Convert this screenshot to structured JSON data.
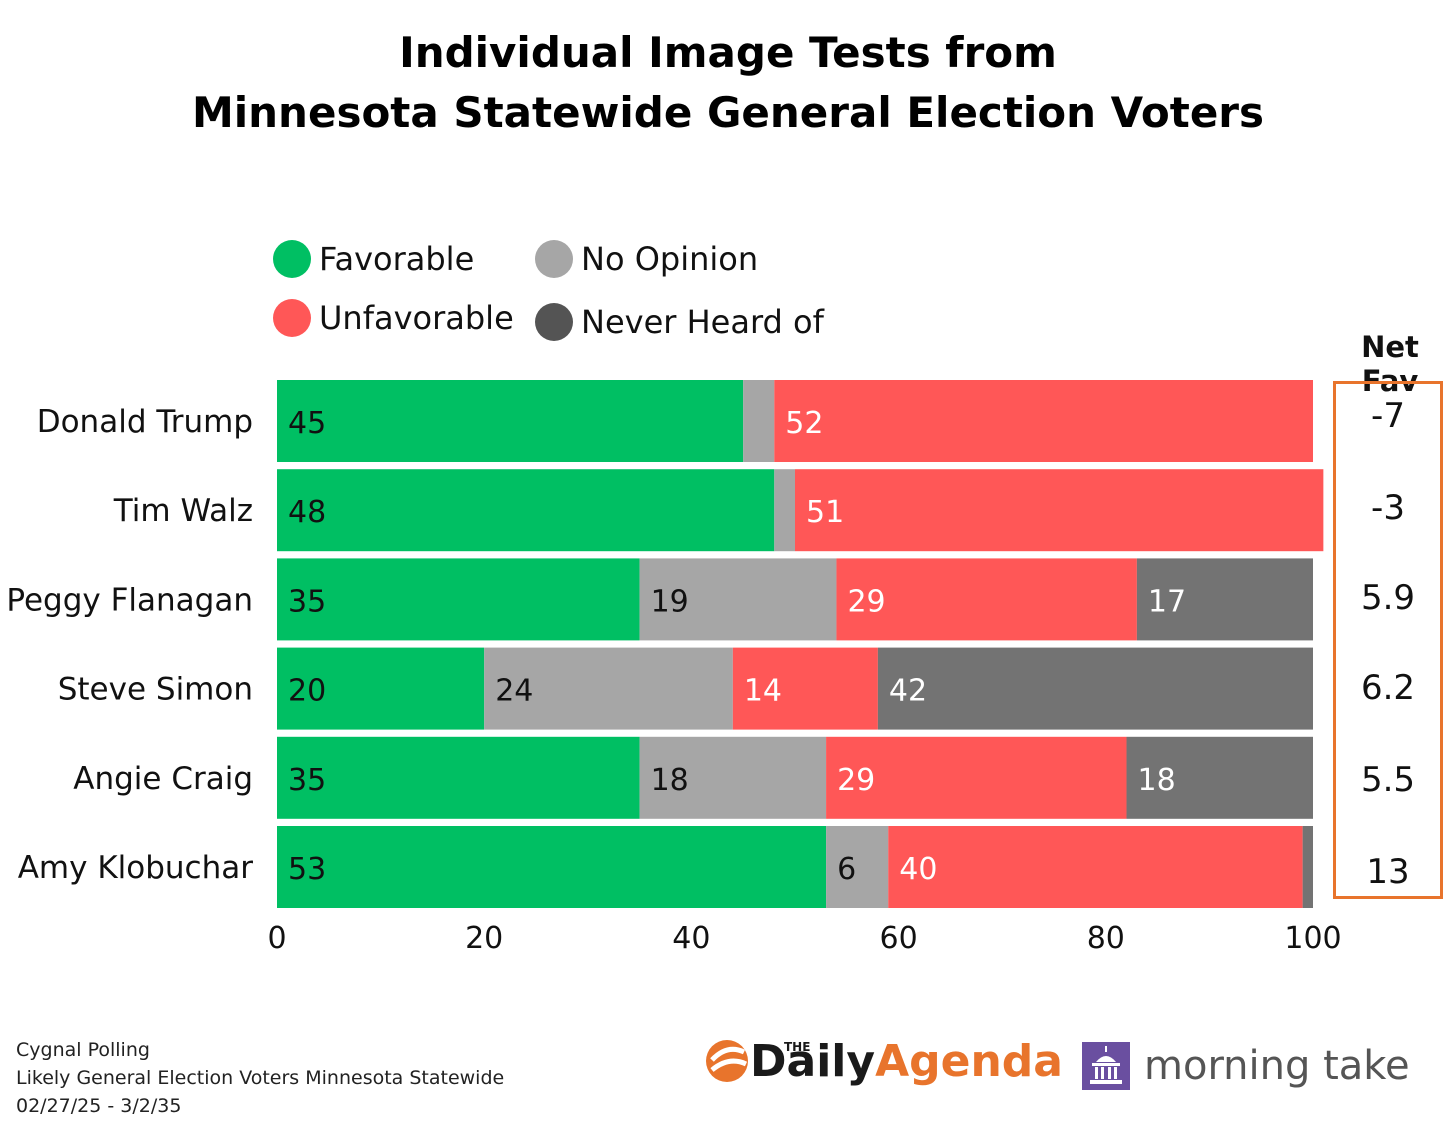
{
  "title_line1": "Individual Image Tests from",
  "title_line2": "Minnesota Statewide General Election Voters",
  "legend": [
    {
      "label": "Favorable",
      "color": "#00bf63"
    },
    {
      "label": "No Opinion",
      "color": "#a6a6a6"
    },
    {
      "label": "Unfavorable",
      "color": "#ff5757"
    },
    {
      "label": "Never Heard of",
      "color": "#545454"
    }
  ],
  "net_fav_header": "Net Fav",
  "net_fav_values": [
    "-7",
    "-3",
    "5.9",
    "6.2",
    "5.5",
    "13"
  ],
  "footer": {
    "line1": "Cygnal Polling",
    "line2": "Likely General Election Voters Minnesota Statewide",
    "line3": "02/27/25 - 3/2/35"
  },
  "logos": {
    "daily_agenda_the": "THE",
    "daily_agenda_daily": "Daily",
    "daily_agenda_agenda": "Agenda",
    "daily_agenda_color": "#e8742c",
    "morning_take": "morning take",
    "morning_take_color": "#6a4fa0"
  },
  "chart_data": {
    "type": "bar",
    "orientation": "horizontal",
    "stacked": true,
    "categories": [
      "Donald Trump",
      "Tim Walz",
      "Peggy Flanagan",
      "Steve Simon",
      "Angie Craig",
      "Amy Klobuchar"
    ],
    "series": [
      {
        "name": "Favorable",
        "color": "#00bf63",
        "label_color": "#111111",
        "values": [
          45,
          48,
          35,
          20,
          35,
          53
        ],
        "labels": [
          "45",
          "48",
          "35",
          "20",
          "35",
          "53"
        ]
      },
      {
        "name": "No Opinion",
        "color": "#a6a6a6",
        "label_color": "#111111",
        "values": [
          3,
          2,
          19,
          24,
          18,
          6
        ],
        "labels": [
          "",
          "",
          "19",
          "24",
          "18",
          "6"
        ]
      },
      {
        "name": "Unfavorable",
        "color": "#ff5757",
        "label_color": "#ffffff",
        "values": [
          52,
          51,
          29,
          14,
          29,
          40
        ],
        "labels": [
          "52",
          "51",
          "29",
          "14",
          "29",
          "40"
        ]
      },
      {
        "name": "Never Heard of",
        "color": "#737373",
        "label_color": "#ffffff",
        "values": [
          0,
          0,
          17,
          42,
          18,
          1
        ],
        "labels": [
          "",
          "",
          "17",
          "42",
          "18",
          ""
        ]
      }
    ],
    "xlim": [
      0,
      100
    ],
    "xticks": [
      0,
      20,
      40,
      60,
      80,
      100
    ],
    "xlabel": "",
    "ylabel": "",
    "grid": false
  }
}
